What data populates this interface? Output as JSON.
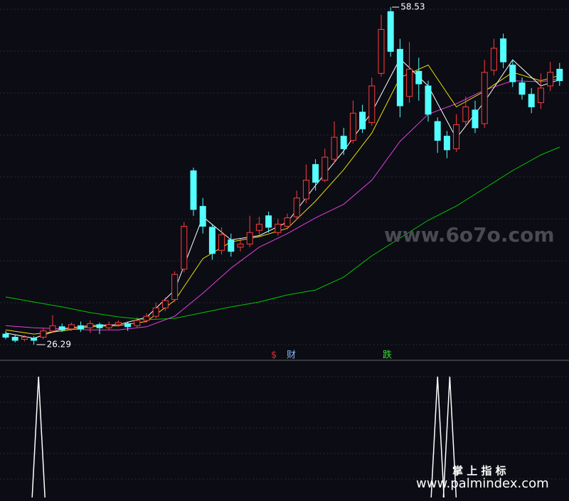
{
  "chart_data": {
    "type": "candlestick",
    "open": [
      27.3,
      27.0,
      26.8,
      26.9,
      27.0,
      27.6,
      28.0,
      27.8,
      28.1,
      27.9,
      28.2,
      27.9,
      28.2,
      28.3,
      28.1,
      28.6,
      29.0,
      29.8,
      30.6,
      33.5,
      42.9,
      39.5,
      37.5,
      35.3,
      36.3,
      35.6,
      35.9,
      37.2,
      38.6,
      37.0,
      37.6,
      38.5,
      40.2,
      43.5,
      42.0,
      44.0,
      46.2,
      45.8,
      48.5,
      47.5,
      52.2,
      58.1,
      54.5,
      50.0,
      52.4,
      51.0,
      47.6,
      46.2,
      45.0,
      47.6,
      48.7,
      47.4,
      52.5,
      55.5,
      53.0,
      51.3,
      50.2,
      49.4,
      51.0,
      52.6
    ],
    "high": [
      27.6,
      27.2,
      27.2,
      27.1,
      27.9,
      29.1,
      28.3,
      28.4,
      28.5,
      28.6,
      28.4,
      28.5,
      28.6,
      28.5,
      28.9,
      29.3,
      30.3,
      30.8,
      33.3,
      38.0,
      43.2,
      40.3,
      37.8,
      37.5,
      36.9,
      36.4,
      38.6,
      38.5,
      39.0,
      38.3,
      38.8,
      41.0,
      43.5,
      44.0,
      45.0,
      47.6,
      47.0,
      49.6,
      49.2,
      51.8,
      57.8,
      58.53,
      55.5,
      55.2,
      53.7,
      51.5,
      48.0,
      46.7,
      48.3,
      50.0,
      49.6,
      53.5,
      55.5,
      56.0,
      53.5,
      51.8,
      50.8,
      52.2,
      53.3,
      53.2
    ],
    "low": [
      26.8,
      26.5,
      26.6,
      26.29,
      26.8,
      27.4,
      27.5,
      27.6,
      27.5,
      27.4,
      27.3,
      27.7,
      28.0,
      27.6,
      27.9,
      28.4,
      28.8,
      29.5,
      30.4,
      33.2,
      38.6,
      36.9,
      34.4,
      34.9,
      34.7,
      35.2,
      35.6,
      36.8,
      37.0,
      36.7,
      37.3,
      38.2,
      39.8,
      41.0,
      41.8,
      43.6,
      44.4,
      45.5,
      46.5,
      47.2,
      51.9,
      53.8,
      48.0,
      49.4,
      49.6,
      47.6,
      44.6,
      44.1,
      44.7,
      47.2,
      46.5,
      47.0,
      52.0,
      52.7,
      50.9,
      49.7,
      48.4,
      48.8,
      50.5,
      51.0
    ],
    "close": [
      27.0,
      26.7,
      27.0,
      26.7,
      27.6,
      28.1,
      27.7,
      28.2,
      27.8,
      28.3,
      27.9,
      28.2,
      28.4,
      28.0,
      28.6,
      29.0,
      29.8,
      30.5,
      33.0,
      37.6,
      39.2,
      37.6,
      35.0,
      36.8,
      35.2,
      35.9,
      37.0,
      37.8,
      37.5,
      37.8,
      38.4,
      40.3,
      42.0,
      41.8,
      44.2,
      46.1,
      45.0,
      48.4,
      46.9,
      51.0,
      56.4,
      54.3,
      49.1,
      52.6,
      51.2,
      48.3,
      45.8,
      44.9,
      47.3,
      49.0,
      47.0,
      52.3,
      54.6,
      53.3,
      51.4,
      50.2,
      49.0,
      50.8,
      52.3,
      51.5
    ],
    "ylim": [
      24.93,
      59.21
    ],
    "up_color": "#ff3c3c",
    "down_color": "#54ffff",
    "series": [
      {
        "color": "#00c800",
        "x": [
          0,
          3,
          6,
          9,
          12,
          15,
          18,
          21,
          24,
          27,
          30,
          33,
          36,
          39,
          42,
          45,
          48,
          51,
          54,
          57,
          59
        ],
        "values": [
          30.84,
          30.36,
          29.89,
          29.35,
          28.94,
          28.67,
          28.8,
          29.35,
          29.89,
          30.36,
          31.04,
          31.51,
          32.74,
          34.77,
          36.47,
          38.17,
          39.53,
          41.22,
          42.92,
          44.41,
          45.16
        ]
      },
      {
        "color": "#e040e0",
        "x": [
          0,
          3,
          6,
          9,
          12,
          15,
          18,
          21,
          24,
          27,
          30,
          33,
          36,
          39,
          42,
          45,
          48,
          51,
          54,
          57,
          59
        ],
        "values": [
          28.1,
          27.9,
          27.8,
          27.7,
          27.7,
          28.0,
          29.0,
          31.2,
          33.6,
          35.6,
          36.9,
          38.4,
          39.7,
          42.0,
          45.7,
          48.3,
          49.3,
          50.6,
          51.5,
          51.4,
          51.7
        ]
      },
      {
        "color": "#e8e000",
        "x": [
          0,
          3,
          6,
          9,
          12,
          15,
          18,
          21,
          24,
          27,
          30,
          33,
          36,
          39,
          42,
          45,
          48,
          51,
          54,
          57,
          59
        ],
        "values": [
          27.7,
          27.3,
          27.6,
          28.0,
          28.1,
          28.5,
          30.5,
          34.5,
          36.1,
          36.6,
          37.4,
          40.0,
          43.0,
          46.5,
          51.8,
          53.0,
          49.0,
          50.5,
          52.3,
          51.5,
          52.0
        ]
      },
      {
        "color": "#ffffff",
        "x": [
          0,
          3,
          6,
          9,
          12,
          15,
          18,
          21,
          24,
          27,
          30,
          33,
          36,
          39,
          42,
          45,
          48,
          51,
          54,
          57,
          59
        ],
        "values": [
          27.4,
          26.9,
          27.8,
          28.1,
          28.2,
          28.9,
          31.5,
          38.5,
          36.3,
          36.7,
          38.0,
          41.5,
          44.8,
          48.5,
          53.6,
          51.0,
          46.0,
          49.5,
          53.5,
          51.0,
          51.6
        ]
      }
    ]
  },
  "indicator": {
    "type": "line",
    "color": "#ffffff",
    "x": [
      3.5,
      46,
      47.3
    ],
    "values": [
      1,
      1,
      1
    ],
    "ylim": [
      0,
      1
    ]
  },
  "signals": [
    {
      "label": "$",
      "color": "#e03030"
    },
    {
      "label": "财",
      "color": "#8ab8ff"
    },
    {
      "label": "跌",
      "color": "#30e030"
    }
  ],
  "watermarks": [
    "www.6o7o.com",
    "掌 上 指 标",
    "www.palmindex.com"
  ]
}
